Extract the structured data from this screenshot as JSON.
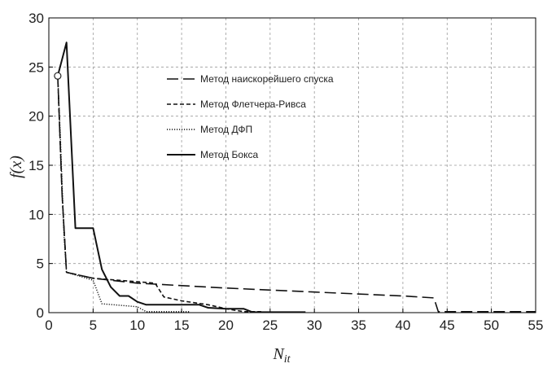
{
  "chart_data": {
    "type": "line",
    "xlabel": "N",
    "xlabel_sub": "it",
    "ylabel": "f(x)",
    "xlim": [
      0,
      55
    ],
    "ylim": [
      0,
      30
    ],
    "xticks": [
      0,
      5,
      10,
      15,
      20,
      25,
      30,
      35,
      40,
      45,
      50,
      55
    ],
    "yticks": [
      0,
      5,
      10,
      15,
      20,
      25,
      30
    ],
    "grid": true,
    "legend_position": "center-top",
    "series": [
      {
        "name": "Метод наискорейшего спуска",
        "style": "long-dash",
        "color": "#111111",
        "x": [
          1,
          1.5,
          2,
          5,
          10,
          20,
          30,
          40,
          43.5,
          44,
          46,
          50,
          55
        ],
        "y": [
          24.1,
          12,
          4.1,
          3.5,
          3.0,
          2.5,
          2.1,
          1.7,
          1.5,
          0.1,
          0.1,
          0.1,
          0.1
        ]
      },
      {
        "name": "Метод Флетчера-Ривса",
        "style": "short-dash",
        "color": "#111111",
        "x": [
          1,
          1.5,
          2,
          5,
          12,
          13,
          15,
          18,
          20,
          22,
          24
        ],
        "y": [
          24.1,
          12,
          4.1,
          3.5,
          3.0,
          1.6,
          1.2,
          0.8,
          0.4,
          0.1,
          0.1
        ]
      },
      {
        "name": "Метод ДФП",
        "style": "dotted",
        "color": "#111111",
        "x": [
          1,
          1.3,
          1.7,
          2,
          5,
          6,
          10,
          11,
          16
        ],
        "y": [
          24.1,
          18,
          8,
          4.1,
          3.3,
          0.9,
          0.6,
          0.1,
          0.1
        ]
      },
      {
        "name": "Метод Бокса",
        "style": "solid",
        "color": "#111111",
        "x": [
          1,
          2,
          3,
          5,
          6,
          7,
          8,
          9,
          10,
          11,
          17,
          18,
          20,
          22,
          23,
          29
        ],
        "y": [
          24.1,
          27.5,
          8.6,
          8.6,
          4.4,
          2.6,
          1.7,
          1.7,
          1.1,
          0.8,
          0.8,
          0.5,
          0.4,
          0.4,
          0.05,
          0.05
        ]
      }
    ],
    "start_marker": {
      "x": 1,
      "y": 24.1
    }
  }
}
